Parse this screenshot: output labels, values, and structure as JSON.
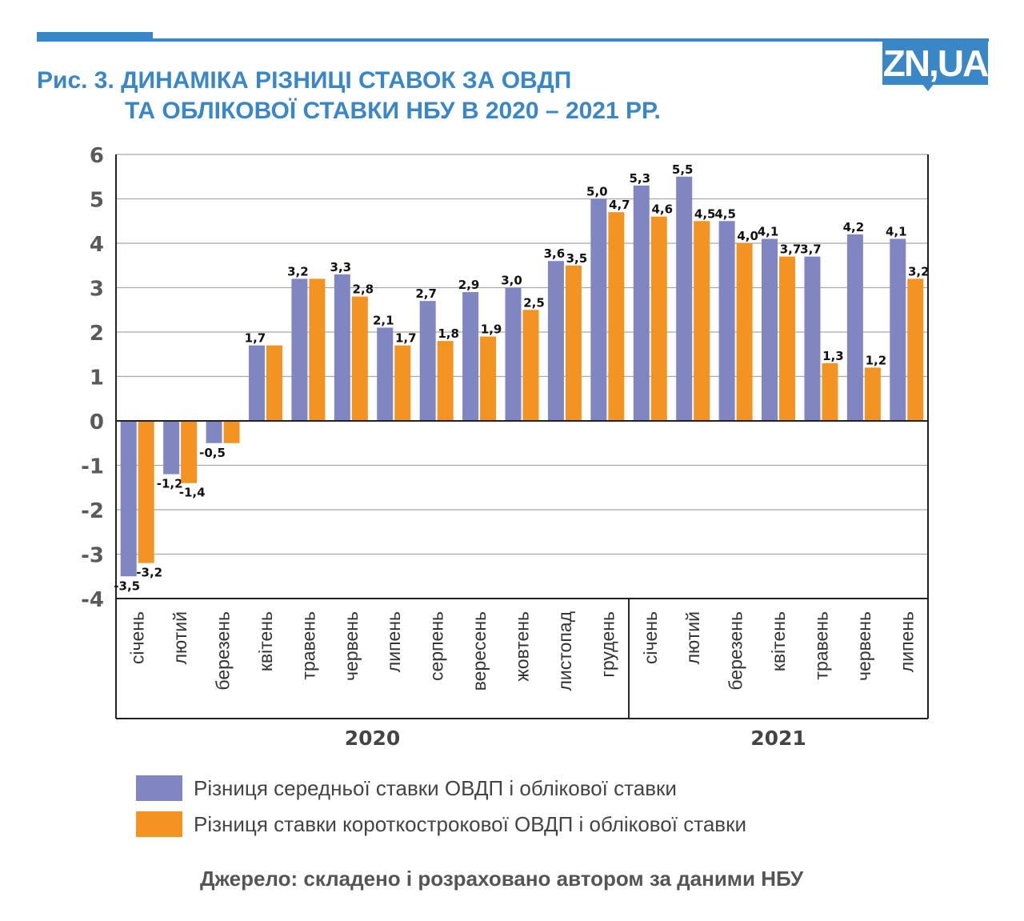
{
  "logo": {
    "text": "ZN,UA"
  },
  "header": {
    "title_line1": "Рис. 3. ДИНАМІКА РІЗНИЦІ СТАВОК ЗА ОВДП",
    "title_line2": "ТА ОБЛІКОВОЇ СТАВКИ НБУ В 2020 – 2021 РР."
  },
  "colors": {
    "brand": "#3a87c8",
    "series1": "#7f86c2",
    "series2": "#f39322",
    "text": "#444444"
  },
  "chart_data": {
    "type": "bar",
    "title": "Рис. 3. ДИНАМІКА РІЗНИЦІ СТАВОК ЗА ОВДП ТА ОБЛІКОВОЇ СТАВКИ НБУ В 2020 – 2021 РР.",
    "xlabel": "",
    "ylabel": "",
    "ylim": [
      -4,
      6
    ],
    "yticks": [
      "6",
      "5",
      "4",
      "3",
      "2",
      "1",
      "0",
      "-1",
      "-2",
      "-3",
      "-4"
    ],
    "ytick_values": [
      6,
      5,
      4,
      3,
      2,
      1,
      0,
      -1,
      -2,
      -3,
      -4
    ],
    "grid": true,
    "categories": [
      "січень",
      "лютий",
      "березень",
      "квітень",
      "травень",
      "червень",
      "липень",
      "серпень",
      "вересень",
      "жовтень",
      "листопад",
      "грудень",
      "січень",
      "лютий",
      "березень",
      "квітень",
      "травень",
      "червень",
      "липень"
    ],
    "groups": [
      {
        "label": "2020",
        "count": 12
      },
      {
        "label": "2021",
        "count": 7
      }
    ],
    "series": [
      {
        "name": "Різниця середньої ставки ОВДП і облікової ставки",
        "color": "#7f86c2",
        "values": [
          -3.5,
          -1.2,
          -0.5,
          1.7,
          3.2,
          3.3,
          2.1,
          2.7,
          2.9,
          3.0,
          3.6,
          5.0,
          5.3,
          5.5,
          4.5,
          4.1,
          3.7,
          4.2,
          4.1
        ],
        "labels": [
          "-3,5",
          "-1,2",
          "-0,5",
          "1,7",
          "3,2",
          "3,3",
          "2,1",
          "2,7",
          "2,9",
          "3,0",
          "3,6",
          "5,0",
          "5,3",
          "5,5",
          "4,5",
          "4,1",
          "3,7",
          "4,2",
          "4,1"
        ]
      },
      {
        "name": "Різниця ставки короткострокової ОВДП і облікової ставки",
        "color": "#f39322",
        "values": [
          -3.2,
          -1.4,
          -0.5,
          1.7,
          3.2,
          2.8,
          1.7,
          1.8,
          1.9,
          2.5,
          3.5,
          4.7,
          4.6,
          4.5,
          4.0,
          3.7,
          1.3,
          1.2,
          3.2
        ],
        "labels": [
          "-3,2",
          "-1,4",
          "",
          "",
          "",
          "2,8",
          "1,7",
          "1,8",
          "1,9",
          "2,5",
          "3,5",
          "4,7",
          "4,6",
          "4,5",
          "4,0",
          "3,7",
          "1,3",
          "1,2",
          "3,2"
        ]
      }
    ],
    "legend_position": "bottom-left"
  },
  "legend": {
    "items": [
      {
        "label": "Різниця середньої ставки ОВДП і облікової ставки"
      },
      {
        "label": "Різниця ставки короткострокової ОВДП і облікової ставки"
      }
    ]
  },
  "footer": {
    "source": "Джерело: складено і розраховано автором за даними НБУ"
  }
}
